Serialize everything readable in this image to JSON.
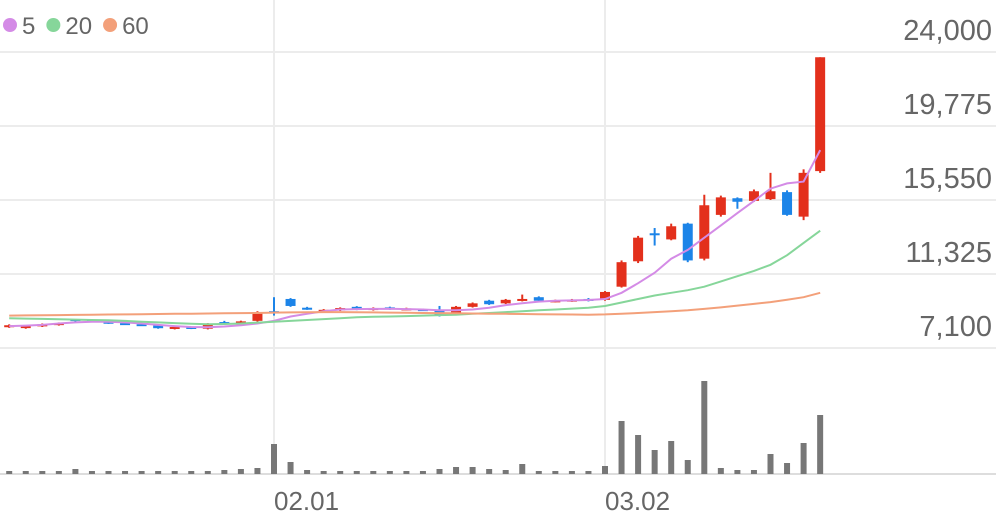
{
  "chart_data": {
    "type": "candlestick",
    "categories": [
      null,
      null,
      null,
      null,
      null,
      null,
      null,
      null,
      null,
      null,
      null,
      null,
      null,
      null,
      null,
      null,
      "02.01",
      null,
      null,
      null,
      null,
      null,
      null,
      null,
      null,
      null,
      null,
      null,
      null,
      null,
      null,
      null,
      null,
      null,
      null,
      null,
      "03.02",
      null,
      null,
      null,
      null,
      null,
      null,
      null,
      null,
      null,
      null,
      null,
      null,
      null
    ],
    "open": [
      8300,
      8250,
      8350,
      8420,
      8750,
      8700,
      8600,
      8520,
      8460,
      8380,
      8200,
      8300,
      8200,
      8580,
      8560,
      8650,
      9200,
      9900,
      9400,
      9200,
      9250,
      9450,
      9280,
      9420,
      9300,
      9320,
      9250,
      9000,
      9450,
      9800,
      9650,
      9800,
      10000,
      9750,
      9780,
      9900,
      9850,
      10600,
      12050,
      13650,
      13300,
      14200,
      12200,
      14700,
      15650,
      15500,
      15600,
      16000,
      14600,
      17200
    ],
    "high": [
      8450,
      8400,
      8500,
      8560,
      8700,
      8670,
      8560,
      8500,
      8440,
      8400,
      8340,
      8320,
      8520,
      8650,
      8660,
      9200,
      10000,
      9950,
      9450,
      9320,
      9420,
      9490,
      9420,
      9460,
      9400,
      9350,
      9500,
      9500,
      9700,
      9850,
      9900,
      10150,
      10050,
      9860,
      9900,
      9950,
      10350,
      12100,
      13500,
      13950,
      14200,
      14250,
      15850,
      15800,
      15700,
      16150,
      17100,
      16100,
      17300,
      23700
    ],
    "low": [
      8250,
      8200,
      8300,
      8380,
      8600,
      8580,
      8480,
      8420,
      8360,
      8200,
      8160,
      8180,
      8160,
      8480,
      8520,
      8600,
      8950,
      9450,
      9280,
      9160,
      9210,
      9260,
      9240,
      9280,
      9260,
      9240,
      8900,
      8960,
      9410,
      9560,
      9610,
      9760,
      9760,
      9710,
      9740,
      9760,
      9800,
      10550,
      11950,
      12950,
      13250,
      12000,
      12100,
      14600,
      15050,
      15450,
      15550,
      14650,
      14400,
      17100
    ],
    "close": [
      8400,
      8350,
      8450,
      8520,
      8650,
      8620,
      8520,
      8460,
      8400,
      8230,
      8300,
      8220,
      8480,
      8520,
      8620,
      9150,
      9100,
      9500,
      9320,
      9280,
      9380,
      9300,
      9380,
      9320,
      9360,
      9280,
      8950,
      9450,
      9650,
      9600,
      9850,
      9900,
      9800,
      9820,
      9860,
      9800,
      10300,
      12000,
      13400,
      13600,
      14050,
      12100,
      15250,
      15700,
      15450,
      16050,
      16050,
      14700,
      17100,
      23700
    ],
    "up_color": "#e3301c",
    "down_color": "#1c84e8",
    "volume": [
      3,
      3,
      3,
      3,
      5,
      3,
      3,
      3,
      3,
      3,
      3,
      3,
      3,
      4,
      5,
      6,
      30,
      12,
      4,
      3,
      3,
      3,
      3,
      3,
      3,
      3,
      5,
      7,
      7,
      5,
      4,
      10,
      3,
      3,
      3,
      3,
      8,
      53,
      39,
      24,
      33,
      14,
      93,
      6,
      4,
      4,
      20,
      11,
      31,
      59
    ],
    "volume_color": "#777777",
    "series": [
      {
        "name": "5",
        "color": "#d48be6",
        "values": [
          8350,
          8380,
          8420,
          8500,
          8560,
          8600,
          8600,
          8560,
          8500,
          8420,
          8350,
          8300,
          8280,
          8330,
          8400,
          8500,
          8650,
          8900,
          9050,
          9200,
          9300,
          9320,
          9330,
          9340,
          9320,
          9300,
          9250,
          9250,
          9300,
          9400,
          9550,
          9650,
          9750,
          9800,
          9820,
          9840,
          9900,
          10250,
          10800,
          11400,
          12200,
          12700,
          13400,
          14100,
          14800,
          15500,
          16200,
          16500,
          16600,
          18400
        ]
      },
      {
        "name": "20",
        "color": "#86d69a",
        "values": [
          8800,
          8780,
          8760,
          8740,
          8720,
          8700,
          8680,
          8650,
          8600,
          8560,
          8520,
          8480,
          8460,
          8470,
          8500,
          8550,
          8600,
          8650,
          8700,
          8750,
          8800,
          8850,
          8880,
          8900,
          8920,
          8950,
          8980,
          9000,
          9050,
          9100,
          9150,
          9200,
          9250,
          9300,
          9350,
          9400,
          9500,
          9700,
          9900,
          10100,
          10250,
          10400,
          10600,
          10900,
          11200,
          11500,
          11850,
          12400,
          13100,
          13800
        ]
      },
      {
        "name": "60",
        "color": "#f3a07a",
        "values": [
          8950,
          8960,
          8970,
          8980,
          8990,
          9000,
          9010,
          9020,
          9030,
          9040,
          9050,
          9060,
          9070,
          9080,
          9090,
          9100,
          9120,
          9130,
          9140,
          9150,
          9150,
          9140,
          9130,
          9120,
          9110,
          9100,
          9090,
          9080,
          9070,
          9060,
          9050,
          9040,
          9030,
          9020,
          9010,
          9000,
          9020,
          9060,
          9100,
          9150,
          9200,
          9250,
          9330,
          9420,
          9520,
          9620,
          9720,
          9850,
          10000,
          10250
        ]
      }
    ],
    "ylim": [
      7100,
      24000
    ],
    "yticks": [
      {
        "value": 7100,
        "label": "7,100"
      },
      {
        "value": 11325,
        "label": "11,325"
      },
      {
        "value": 15550,
        "label": "15,550"
      },
      {
        "value": 19775,
        "label": "19,775"
      },
      {
        "value": 24000,
        "label": "24,000"
      }
    ],
    "grid": true
  }
}
